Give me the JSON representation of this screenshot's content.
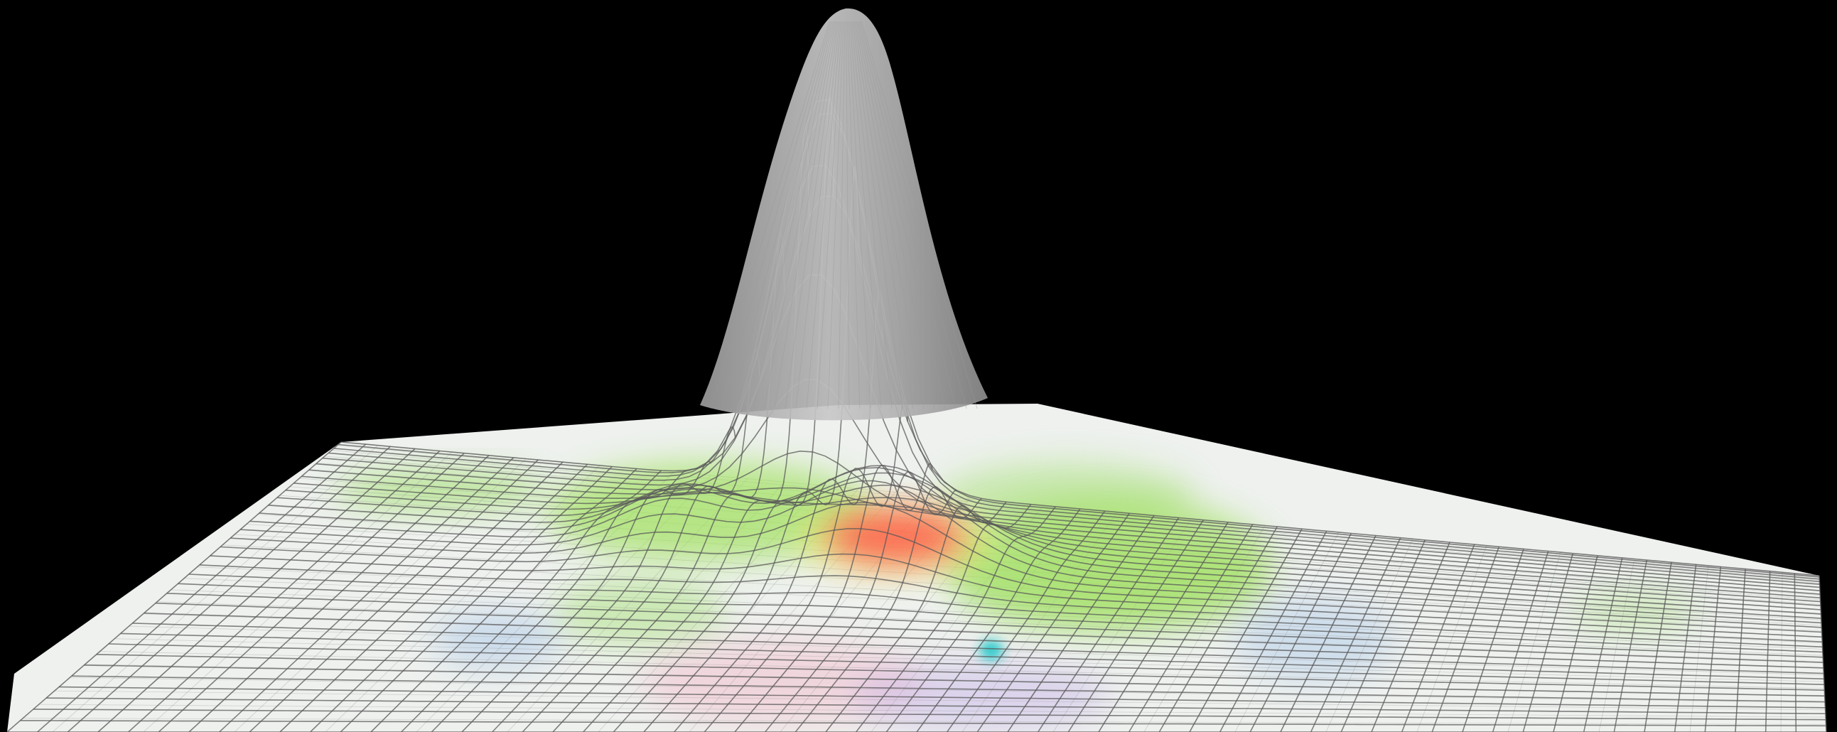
{
  "scene": {
    "description_free": true,
    "background_color": "#000000",
    "map_plane": {
      "base_color": "#eef1ee",
      "street_line_color": "#8a8a8a",
      "water_color": "#a9c6e8",
      "park_color": "#a8e07a"
    },
    "surface": {
      "mesh_color": "#5a5a5a",
      "peak_fill_color": "#b4b4b4",
      "peak_fill_highlight": "#d2d2d2",
      "mesh_rows": 34,
      "mesh_cols": 60
    },
    "heat_spots": [
      {
        "name": "heat-hotspot-red",
        "color": "#ff5a4a"
      },
      {
        "name": "heat-hotspot-cyan",
        "color": "#1ec8c8"
      },
      {
        "name": "heat-zone-green",
        "color": "#9ee05a"
      },
      {
        "name": "heat-zone-yellow",
        "color": "#e8e86a"
      }
    ]
  }
}
